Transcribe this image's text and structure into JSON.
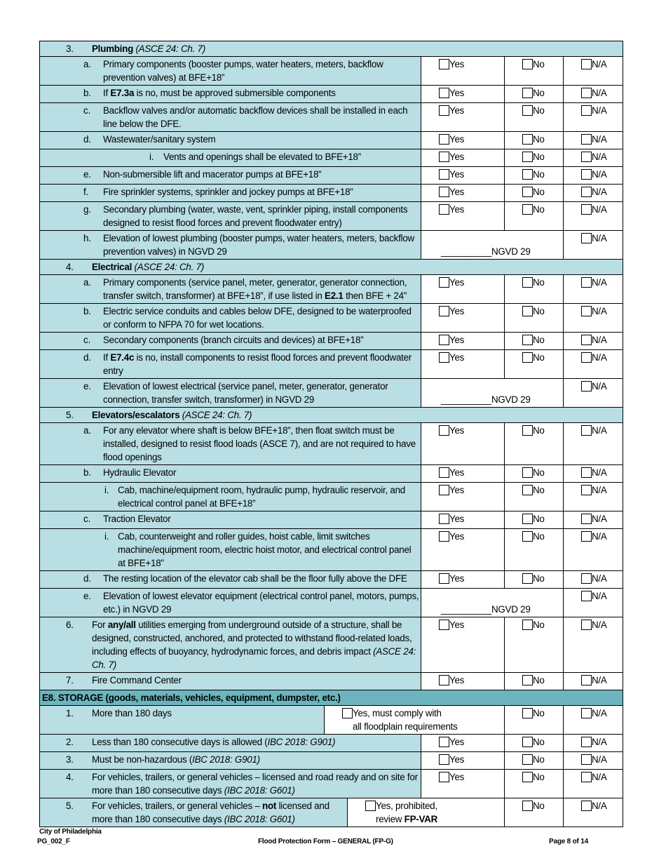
{
  "rows": [
    {
      "type": "section",
      "level": "l1",
      "marker": "3.",
      "text": [
        {
          "t": "Plumbing",
          "b": 1
        },
        {
          "t": " (ASCE 24: Ch. 7)",
          "i": 1
        }
      ]
    },
    {
      "type": "check",
      "level": "l2",
      "marker": "a.",
      "text": [
        {
          "t": "Primary components (booster pumps, water heaters, meters, backflow  prevention valves) at BFE+18”"
        }
      ]
    },
    {
      "type": "check",
      "level": "l2",
      "marker": "b.",
      "text": [
        {
          "t": "If "
        },
        {
          "t": "E7.3a",
          "b": 1
        },
        {
          "t": " is no, must be approved submersible components"
        }
      ]
    },
    {
      "type": "check",
      "level": "l2",
      "marker": "c.",
      "text": [
        {
          "t": "Backflow valves and/or automatic backflow devices shall be installed in each line below the DFE."
        }
      ]
    },
    {
      "type": "check",
      "level": "l2",
      "marker": "d.",
      "text": [
        {
          "t": "Wastewater/sanitary system"
        }
      ]
    },
    {
      "type": "check",
      "level": "l3b",
      "marker": "i.",
      "text": [
        {
          "t": "Vents and openings shall be elevated to BFE+18”"
        }
      ]
    },
    {
      "type": "check",
      "level": "l2",
      "marker": "e.",
      "text": [
        {
          "t": "Non-submersible lift and macerator pumps at BFE+18”"
        }
      ]
    },
    {
      "type": "check",
      "level": "l2",
      "marker": "f.",
      "text": [
        {
          "t": "Fire sprinkler systems, sprinkler and jockey pumps at BFE+18”"
        }
      ]
    },
    {
      "type": "check",
      "level": "l2",
      "marker": "g.",
      "text": [
        {
          "t": "Secondary plumbing (water, waste, vent, sprinkler piping, install components designed to resist flood forces and prevent floodwater entry)"
        }
      ]
    },
    {
      "type": "ngvd",
      "level": "l2",
      "marker": "h.",
      "text": [
        {
          "t": "Elevation of lowest plumbing (booster pumps, water heaters, meters, backflow prevention valves) in NGVD 29"
        }
      ]
    },
    {
      "type": "section",
      "level": "l1",
      "marker": "4.",
      "text": [
        {
          "t": "Electrical",
          "b": 1
        },
        {
          "t": " (ASCE 24: Ch. 7)",
          "i": 1
        }
      ]
    },
    {
      "type": "check",
      "level": "l2",
      "marker": "a.",
      "text": [
        {
          "t": "Primary components (service panel, meter, generator, generator connection, transfer switch, transformer) at BFE+18”, if use listed in "
        },
        {
          "t": "E2.1",
          "b": 1
        },
        {
          "t": " then BFE + 24”"
        }
      ]
    },
    {
      "type": "check",
      "level": "l2",
      "marker": "b.",
      "text": [
        {
          "t": "Electric service conduits and cables below DFE, designed to be waterproofed or conform to NFPA 70 for wet locations."
        }
      ]
    },
    {
      "type": "check",
      "level": "l2",
      "marker": "c.",
      "text": [
        {
          "t": "Secondary components (branch circuits and devices) at BFE+18”"
        }
      ]
    },
    {
      "type": "check",
      "level": "l2",
      "marker": "d.",
      "text": [
        {
          "t": "If "
        },
        {
          "t": "E7.4c",
          "b": 1
        },
        {
          "t": " is no, install components to resist flood forces and prevent floodwater entry"
        }
      ]
    },
    {
      "type": "ngvd",
      "level": "l2",
      "marker": "e.",
      "text": [
        {
          "t": "Elevation of lowest electrical (service panel, meter, generator, generator connection, transfer switch, transformer) in NGVD 29"
        }
      ]
    },
    {
      "type": "section",
      "level": "l1",
      "marker": "5.",
      "text": [
        {
          "t": "Elevators/escalators",
          "b": 1
        },
        {
          "t": " (ASCE 24: Ch. 7)",
          "i": 1
        }
      ]
    },
    {
      "type": "check",
      "level": "l2",
      "marker": "a.",
      "text": [
        {
          "t": "For any elevator where shaft is below BFE+18”, then float switch must be installed, designed to resist flood loads (ASCE 7), and are not required to have flood openings"
        }
      ]
    },
    {
      "type": "check",
      "level": "l2",
      "marker": "b.",
      "text": [
        {
          "t": "Hydraulic Elevator"
        }
      ]
    },
    {
      "type": "check",
      "level": "l3",
      "marker": "i.",
      "text": [
        {
          "t": "Cab, machine/equipment room, hydraulic pump, hydraulic reservoir, and electrical control panel at BFE+18”"
        }
      ]
    },
    {
      "type": "check",
      "level": "l2",
      "marker": "c.",
      "text": [
        {
          "t": "Traction Elevator"
        }
      ]
    },
    {
      "type": "check",
      "level": "l3",
      "marker": "i.",
      "text": [
        {
          "t": "Cab, counterweight and roller guides, hoist cable, limit switches machine/equipment room, electric hoist motor, and electrical control panel at BFE+18”"
        }
      ]
    },
    {
      "type": "check",
      "level": "l2",
      "marker": "d.",
      "text": [
        {
          "t": "The resting location of the elevator cab shall be the floor fully above the DFE"
        }
      ]
    },
    {
      "type": "ngvd",
      "level": "l2",
      "marker": "e.",
      "text": [
        {
          "t": "Elevation of lowest elevator equipment (electrical control panel, motors, pumps, etc.)  in NGVD 29"
        }
      ]
    },
    {
      "type": "check",
      "level": "l1",
      "marker": "6.",
      "text": [
        {
          "t": "For "
        },
        {
          "t": "any/all",
          "b": 1
        },
        {
          "t": " utilities emerging from underground outside of a structure, shall be designed, constructed, anchored, and protected to withstand flood-related loads, including effects of buoyancy, hydrodynamic forces, and debris impact "
        },
        {
          "t": "(ASCE 24: Ch. 7)",
          "i": 1
        }
      ]
    },
    {
      "type": "check",
      "level": "l1",
      "marker": "7.",
      "text": [
        {
          "t": "Fire Command Center"
        }
      ]
    },
    {
      "type": "section8",
      "text": [
        {
          "t": "E8. STORAGE (goods, materials, vehicles, equipment, dumpster, etc.)"
        }
      ]
    },
    {
      "type": "wide1",
      "level": "l1",
      "marker": "1.",
      "text": [
        {
          "t": "More than 180 days"
        }
      ],
      "yes": [
        {
          "t": "Yes, must comply with"
        },
        {
          "t": "all floodplain requirements",
          "br": 1
        }
      ]
    },
    {
      "type": "check",
      "level": "l1",
      "marker": "2.",
      "text": [
        {
          "t": "Less than 180 consecutive days is allowed ("
        },
        {
          "t": "IBC 2018: G901)",
          "i": 1
        }
      ]
    },
    {
      "type": "check",
      "level": "l1",
      "marker": "3.",
      "text": [
        {
          "t": "Must be non-hazardous ("
        },
        {
          "t": "IBC 2018: G901)",
          "i": 1
        }
      ]
    },
    {
      "type": "check",
      "level": "l1",
      "marker": "4.",
      "text": [
        {
          "t": "For vehicles, trailers, or general vehicles – licensed and road ready and on site for more than 180 consecutive days "
        },
        {
          "t": "(IBC 2018: G601)",
          "i": 1
        }
      ]
    },
    {
      "type": "wide5",
      "level": "l1",
      "marker": "5.",
      "text": [
        {
          "t": "For vehicles, trailers, or general vehicles – "
        },
        {
          "t": "not",
          "b": 1
        },
        {
          "t": " licensed and more than 180 consecutive days "
        },
        {
          "t": "(IBC 2018: G601)",
          "i": 1
        }
      ],
      "yes": [
        {
          "t": "Yes, prohibited,"
        },
        {
          "t": "review ",
          "br": 1
        },
        {
          "t": "FP-VAR",
          "b": 1
        }
      ]
    }
  ],
  "labels": {
    "yes": "Yes",
    "no": "No",
    "na": "N/A",
    "ngvd": "__________NGVD 29"
  },
  "footer": {
    "org": "City of Philadelphia",
    "code": "PG_002_F",
    "title": "Flood Protection Form – GENERAL (FP-G)",
    "page": "Page 8 of 14"
  },
  "colors": {
    "row_bg": "#b9dee3",
    "section_header_bg": "#6cb5be"
  }
}
